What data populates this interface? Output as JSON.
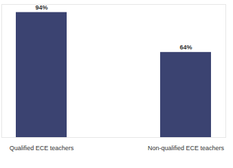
{
  "chart_data": {
    "type": "bar",
    "categories": [
      "Qualified ECE teachers",
      "Non-qualified ECE teachers"
    ],
    "values": [
      94,
      64
    ],
    "value_labels": [
      "94%",
      "64%"
    ],
    "data_labels": true,
    "color": "#3b4371",
    "ylim": [
      0,
      100
    ],
    "tick_labels": "x",
    "grid": false
  }
}
